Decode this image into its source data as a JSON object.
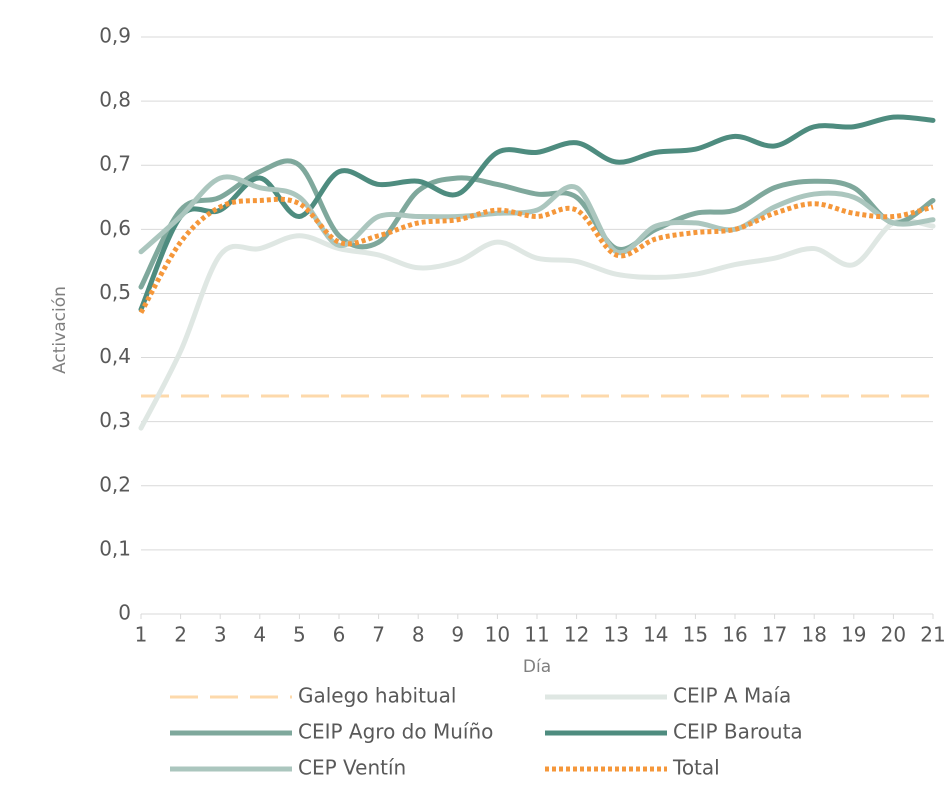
{
  "chart_data": {
    "type": "line",
    "x": [
      1,
      2,
      3,
      4,
      5,
      6,
      7,
      8,
      9,
      10,
      11,
      12,
      13,
      14,
      15,
      16,
      17,
      18,
      19,
      20,
      21
    ],
    "xlim": [
      1,
      21
    ],
    "xticks": [
      1,
      2,
      3,
      4,
      5,
      6,
      7,
      8,
      9,
      10,
      11,
      12,
      13,
      14,
      15,
      16,
      17,
      18,
      19,
      20,
      21
    ],
    "ylim": [
      0,
      0.9
    ],
    "yticks": [
      0,
      {
        "value": 0.1,
        "label": "0,1"
      },
      {
        "value": 0.2,
        "label": "0,2"
      },
      {
        "value": 0.3,
        "label": "0,3"
      },
      {
        "value": 0.4,
        "label": "0,4"
      },
      {
        "value": 0.5,
        "label": "0,5"
      },
      {
        "value": 0.6,
        "label": "0,6"
      },
      {
        "value": 0.7,
        "label": "0,7"
      },
      {
        "value": 0.8,
        "label": "0,8"
      },
      {
        "value": 0.9,
        "label": "0,9"
      }
    ],
    "xlabel": "Día",
    "ylabel": "Activación",
    "grid": true,
    "legend": "bottom",
    "smooth": true,
    "series": [
      {
        "name": "Galego habitual",
        "color": "#fdd9ab",
        "style": "dashed",
        "values": [
          0.34,
          0.34,
          0.34,
          0.34,
          0.34,
          0.34,
          0.34,
          0.34,
          0.34,
          0.34,
          0.34,
          0.34,
          0.34,
          0.34,
          0.34,
          0.34,
          0.34,
          0.34,
          0.34,
          0.34,
          0.34
        ]
      },
      {
        "name": "CEIP A Maía",
        "color": "#dfe7e3",
        "style": "solid",
        "values": [
          0.29,
          0.41,
          0.56,
          0.57,
          0.59,
          0.57,
          0.56,
          0.54,
          0.55,
          0.58,
          0.555,
          0.55,
          0.53,
          0.525,
          0.53,
          0.545,
          0.555,
          0.57,
          0.545,
          0.61,
          0.605
        ]
      },
      {
        "name": "CEIP Agro do Muíño",
        "color": "#7fa89c",
        "style": "solid",
        "values": [
          0.51,
          0.63,
          0.65,
          0.69,
          0.7,
          0.59,
          0.58,
          0.66,
          0.68,
          0.67,
          0.655,
          0.65,
          0.57,
          0.6,
          0.625,
          0.63,
          0.665,
          0.675,
          0.665,
          0.61,
          0.645
        ]
      },
      {
        "name": "CEIP Barouta",
        "color": "#4e8c7f",
        "style": "solid",
        "values": [
          0.475,
          0.62,
          0.63,
          0.68,
          0.62,
          0.69,
          0.67,
          0.675,
          0.655,
          0.72,
          0.72,
          0.735,
          0.705,
          0.72,
          0.725,
          0.745,
          0.73,
          0.76,
          0.76,
          0.775,
          0.77
        ]
      },
      {
        "name": "CEP Ventín",
        "color": "#abc6be",
        "style": "solid",
        "values": [
          0.565,
          0.62,
          0.68,
          0.665,
          0.65,
          0.575,
          0.62,
          0.62,
          0.62,
          0.625,
          0.63,
          0.665,
          0.565,
          0.605,
          0.61,
          0.6,
          0.635,
          0.655,
          0.65,
          0.61,
          0.615
        ]
      },
      {
        "name": "Total",
        "color": "#f5973a",
        "style": "dotted",
        "values": [
          0.47,
          0.58,
          0.635,
          0.645,
          0.64,
          0.58,
          0.59,
          0.61,
          0.615,
          0.63,
          0.62,
          0.63,
          0.56,
          0.585,
          0.595,
          0.6,
          0.625,
          0.64,
          0.625,
          0.62,
          0.635
        ]
      }
    ]
  }
}
